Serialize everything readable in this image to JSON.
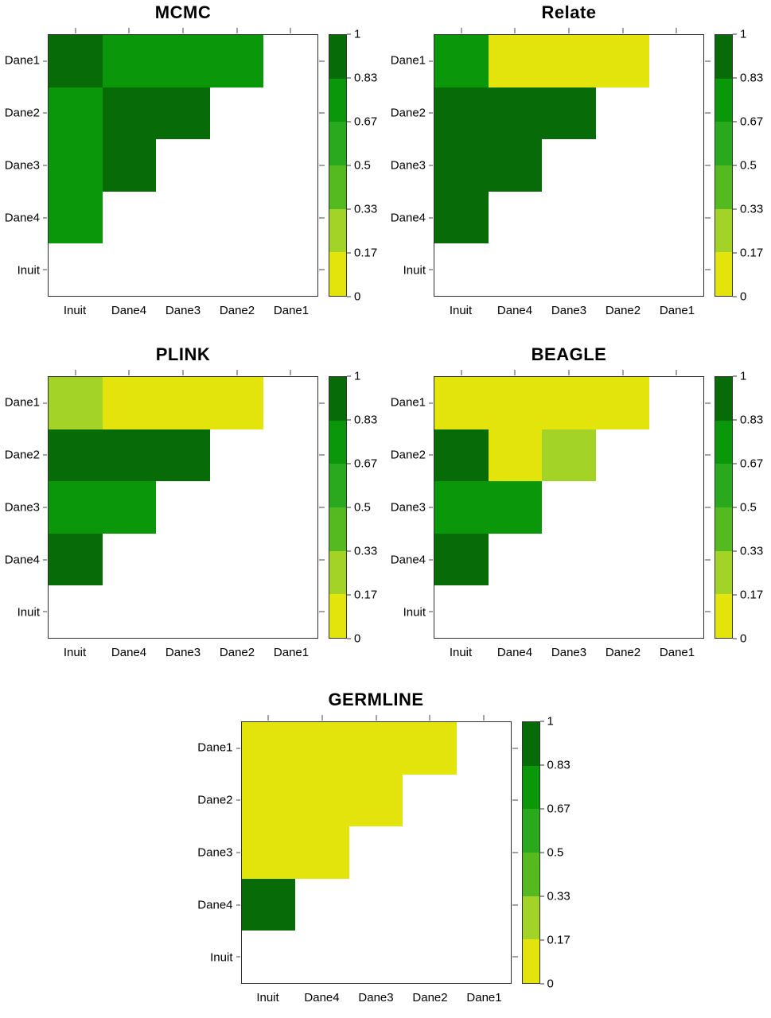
{
  "figure": {
    "background_color": "#ffffff",
    "text_color": "#000000",
    "axis_line_color": "#2e2e2e"
  },
  "chart_data": {
    "type": "heatmap",
    "description": "Five lower-triangular pairwise heatmap panels comparing methods; values binned on a 6-step yellow-to-darkgreen scale from 0 to 1.",
    "x_categories": [
      "Inuit",
      "Dane4",
      "Dane3",
      "Dane2",
      "Dane1"
    ],
    "y_categories": [
      "Dane1",
      "Dane2",
      "Dane3",
      "Dane4",
      "Inuit"
    ],
    "legend_position": "right",
    "grid": false,
    "scale": {
      "range": [
        0,
        1
      ],
      "tick_labels": [
        "1",
        "0.83",
        "0.67",
        "0.5",
        "0.33",
        "0.17",
        "0"
      ],
      "bin_upper_bounds": [
        0.17,
        0.33,
        0.5,
        0.67,
        0.83,
        1
      ],
      "colors_low_to_high": [
        "#e3e40c",
        "#a3d327",
        "#55ba20",
        "#2aa91e",
        "#0a980a",
        "#076c07"
      ]
    },
    "panels": [
      {
        "title": "MCMC",
        "matrix": [
          [
            0.92,
            0.75,
            0.75,
            0.75,
            null
          ],
          [
            0.75,
            0.92,
            0.92,
            null,
            null
          ],
          [
            0.75,
            0.92,
            null,
            null,
            null
          ],
          [
            0.75,
            null,
            null,
            null,
            null
          ],
          [
            null,
            null,
            null,
            null,
            null
          ]
        ]
      },
      {
        "title": "Relate",
        "matrix": [
          [
            0.75,
            0.08,
            0.08,
            0.08,
            null
          ],
          [
            0.92,
            0.92,
            0.92,
            null,
            null
          ],
          [
            0.92,
            0.92,
            null,
            null,
            null
          ],
          [
            0.92,
            null,
            null,
            null,
            null
          ],
          [
            null,
            null,
            null,
            null,
            null
          ]
        ]
      },
      {
        "title": "PLINK",
        "matrix": [
          [
            0.25,
            0.08,
            0.08,
            0.08,
            null
          ],
          [
            0.92,
            0.92,
            0.92,
            null,
            null
          ],
          [
            0.75,
            0.75,
            null,
            null,
            null
          ],
          [
            0.92,
            null,
            null,
            null,
            null
          ],
          [
            null,
            null,
            null,
            null,
            null
          ]
        ]
      },
      {
        "title": "BEAGLE",
        "matrix": [
          [
            0.08,
            0.08,
            0.08,
            0.08,
            null
          ],
          [
            0.92,
            0.08,
            0.25,
            null,
            null
          ],
          [
            0.75,
            0.75,
            null,
            null,
            null
          ],
          [
            0.92,
            null,
            null,
            null,
            null
          ],
          [
            null,
            null,
            null,
            null,
            null
          ]
        ]
      },
      {
        "title": "GERMLINE",
        "matrix": [
          [
            0.08,
            0.08,
            0.08,
            0.08,
            null
          ],
          [
            0.08,
            0.08,
            0.08,
            null,
            null
          ],
          [
            0.08,
            0.08,
            null,
            null,
            null
          ],
          [
            0.92,
            null,
            null,
            null,
            null
          ],
          [
            null,
            null,
            null,
            null,
            null
          ]
        ]
      }
    ]
  }
}
